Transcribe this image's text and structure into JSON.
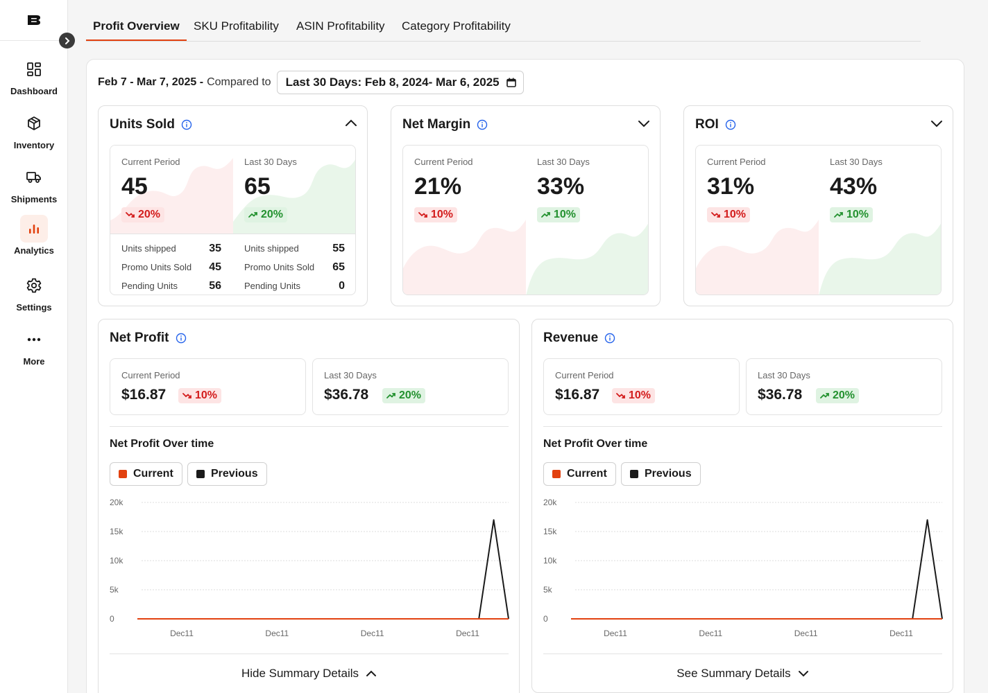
{
  "sidebar": {
    "items": [
      {
        "label": "Dashboard",
        "icon": "dashboard-icon"
      },
      {
        "label": "Inventory",
        "icon": "box-icon"
      },
      {
        "label": "Shipments",
        "icon": "truck-icon"
      },
      {
        "label": "Analytics",
        "icon": "bar-chart-icon",
        "active": true
      },
      {
        "label": "Settings",
        "icon": "gear-icon"
      },
      {
        "label": "More",
        "icon": "more-icon"
      }
    ]
  },
  "tabs": [
    {
      "label": "Profit Overview",
      "active": true
    },
    {
      "label": "SKU Profitability"
    },
    {
      "label": "ASIN Profitability"
    },
    {
      "label": "Category Profitability"
    }
  ],
  "date_filter": {
    "range": "Feb 7 - Mar 7, 2025 -",
    "compared_to": "Compared to",
    "selected": "Last 30 Days: Feb 8, 2024- Mar 6, 2025"
  },
  "colors": {
    "accent": "#e2410f",
    "negative": "#d31c1c",
    "positive": "#23912f",
    "previous": "#1a1a1a"
  },
  "units_sold": {
    "title": "Units Sold",
    "current": {
      "label": "Current Period",
      "value": "45",
      "change": "20%",
      "trend": "down"
    },
    "previous": {
      "label": "Last 30 Days",
      "value": "65",
      "change": "20%",
      "trend": "up"
    },
    "details": {
      "current": [
        {
          "label": "Units shipped",
          "value": "35"
        },
        {
          "label": "Promo Units Sold",
          "value": "45"
        },
        {
          "label": "Pending Units",
          "value": "56"
        }
      ],
      "previous": [
        {
          "label": "Units shipped",
          "value": "55"
        },
        {
          "label": "Promo Units Sold",
          "value": "65"
        },
        {
          "label": "Pending Units",
          "value": "0"
        }
      ]
    }
  },
  "net_margin": {
    "title": "Net Margin",
    "current": {
      "label": "Current Period",
      "value": "21%",
      "change": "10%",
      "trend": "down"
    },
    "previous": {
      "label": "Last 30 Days",
      "value": "33%",
      "change": "10%",
      "trend": "up"
    }
  },
  "roi": {
    "title": "ROI",
    "current": {
      "label": "Current Period",
      "value": "31%",
      "change": "10%",
      "trend": "down"
    },
    "previous": {
      "label": "Last 30 Days",
      "value": "43%",
      "change": "10%",
      "trend": "up"
    }
  },
  "net_profit": {
    "title": "Net Profit",
    "current": {
      "label": "Current Period",
      "value": "$16.87",
      "change": "10%",
      "trend": "down"
    },
    "previous": {
      "label": "Last 30 Days",
      "value": "$36.78",
      "change": "20%",
      "trend": "up"
    },
    "chart_title": "Net Profit Over time",
    "legend_current": "Current",
    "legend_previous": "Previous",
    "summary_label": "Hide Summary Details"
  },
  "revenue": {
    "title": "Revenue",
    "current": {
      "label": "Current Period",
      "value": "$16.87",
      "change": "10%",
      "trend": "down"
    },
    "previous": {
      "label": "Last 30 Days",
      "value": "$36.78",
      "change": "20%",
      "trend": "up"
    },
    "chart_title": "Net Profit Over time",
    "legend_current": "Current",
    "legend_previous": "Previous",
    "summary_label": "See Summary Details"
  },
  "chart_data": [
    {
      "type": "line",
      "title": "Net Profit Over time",
      "yticks": [
        "0",
        "5k",
        "10k",
        "15k",
        "20k"
      ],
      "ylim": [
        0,
        20000
      ],
      "xticks": [
        "Dec11",
        "Dec11",
        "Dec11",
        "Dec11"
      ],
      "grid": true,
      "series": [
        {
          "name": "Current",
          "color": "#e2410f",
          "values": [
            0,
            0,
            0,
            0,
            0,
            0,
            0,
            0,
            0,
            0,
            0,
            0,
            0,
            0,
            0,
            0,
            0,
            0,
            0,
            0,
            0,
            0,
            0,
            0,
            0,
            0
          ]
        },
        {
          "name": "Previous",
          "color": "#1a1a1a",
          "values": [
            0,
            0,
            0,
            0,
            0,
            0,
            0,
            0,
            0,
            0,
            0,
            0,
            0,
            0,
            0,
            0,
            0,
            0,
            0,
            0,
            0,
            0,
            0,
            0,
            17000,
            0
          ]
        }
      ]
    },
    {
      "type": "line",
      "title": "Net Profit Over time",
      "yticks": [
        "0",
        "5k",
        "10k",
        "15k",
        "20k"
      ],
      "ylim": [
        0,
        20000
      ],
      "xticks": [
        "Dec11",
        "Dec11",
        "Dec11",
        "Dec11"
      ],
      "grid": true,
      "series": [
        {
          "name": "Current",
          "color": "#e2410f",
          "values": [
            0,
            0,
            0,
            0,
            0,
            0,
            0,
            0,
            0,
            0,
            0,
            0,
            0,
            0,
            0,
            0,
            0,
            0,
            0,
            0,
            0,
            0,
            0,
            0,
            0,
            0
          ]
        },
        {
          "name": "Previous",
          "color": "#1a1a1a",
          "values": [
            0,
            0,
            0,
            0,
            0,
            0,
            0,
            0,
            0,
            0,
            0,
            0,
            0,
            0,
            0,
            0,
            0,
            0,
            0,
            0,
            0,
            0,
            0,
            0,
            17000,
            0
          ]
        }
      ]
    }
  ]
}
